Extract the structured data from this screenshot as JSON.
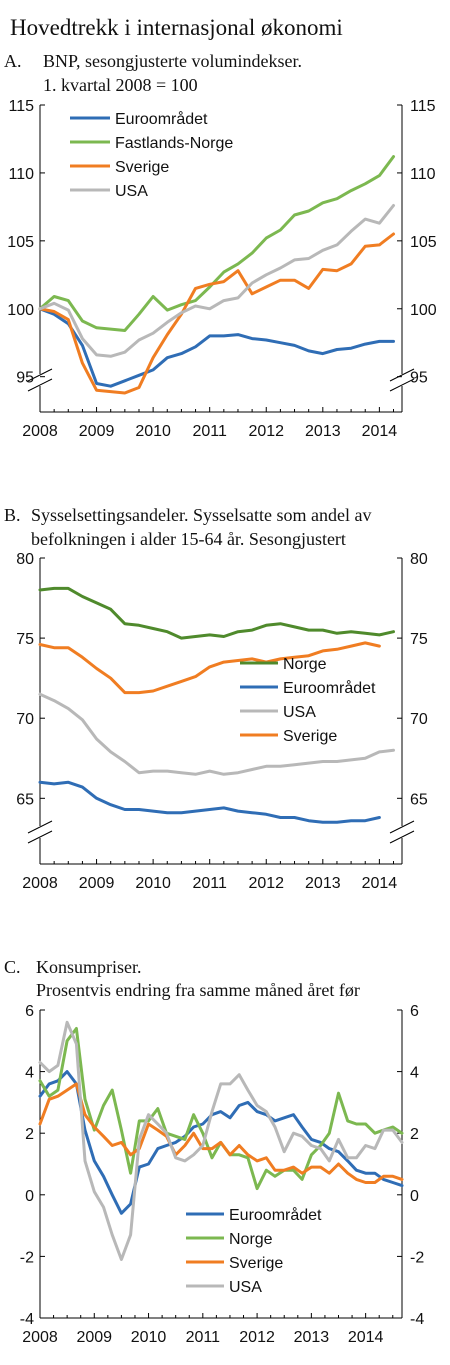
{
  "page_title": "Hovedtrekk i internasjonal økonomi",
  "chart_data": [
    {
      "id": "A",
      "type": "line",
      "panel_label": "A.",
      "title_lines": [
        "BNP, sesongjusterte volumindekser.",
        "1. kvartal 2008 = 100"
      ],
      "x_tick_labels": [
        "2008",
        "2009",
        "2010",
        "2011",
        "2012",
        "2013",
        "2014"
      ],
      "x_range": [
        2008,
        2014.4
      ],
      "y_range": [
        93.5,
        115
      ],
      "y_ticks": [
        95,
        100,
        105,
        110,
        115
      ],
      "axis_break": true,
      "grid": false,
      "legend_position": "top-left",
      "series": [
        {
          "name": "Euroområdet",
          "color": "#2f6db5",
          "x": [
            2008.0,
            2008.25,
            2008.5,
            2008.75,
            2009.0,
            2009.25,
            2009.5,
            2009.75,
            2010.0,
            2010.25,
            2010.5,
            2010.75,
            2011.0,
            2011.25,
            2011.5,
            2011.75,
            2012.0,
            2012.25,
            2012.5,
            2012.75,
            2013.0,
            2013.25,
            2013.5,
            2013.75,
            2014.0,
            2014.25
          ],
          "values": [
            100,
            99.6,
            98.9,
            97.3,
            94.5,
            94.3,
            94.7,
            95.1,
            95.5,
            96.4,
            96.7,
            97.2,
            98.0,
            98.0,
            98.1,
            97.8,
            97.7,
            97.5,
            97.3,
            96.9,
            96.7,
            97.0,
            97.1,
            97.4,
            97.6,
            97.6
          ]
        },
        {
          "name": "Fastlands-Norge",
          "color": "#7cb850",
          "x": [
            2008.0,
            2008.25,
            2008.5,
            2008.75,
            2009.0,
            2009.25,
            2009.5,
            2009.75,
            2010.0,
            2010.25,
            2010.5,
            2010.75,
            2011.0,
            2011.25,
            2011.5,
            2011.75,
            2012.0,
            2012.25,
            2012.5,
            2012.75,
            2013.0,
            2013.25,
            2013.5,
            2013.75,
            2014.0,
            2014.25
          ],
          "values": [
            100,
            100.9,
            100.6,
            99.1,
            98.6,
            98.5,
            98.4,
            99.6,
            100.9,
            99.9,
            100.3,
            100.6,
            101.6,
            102.7,
            103.3,
            104.1,
            105.2,
            105.8,
            106.9,
            107.2,
            107.8,
            108.1,
            108.7,
            109.2,
            109.8,
            111.2
          ]
        },
        {
          "name": "Sverige",
          "color": "#f07d22",
          "x": [
            2008.0,
            2008.25,
            2008.5,
            2008.75,
            2009.0,
            2009.25,
            2009.5,
            2009.75,
            2010.0,
            2010.25,
            2010.5,
            2010.75,
            2011.0,
            2011.25,
            2011.5,
            2011.75,
            2012.0,
            2012.25,
            2012.5,
            2012.75,
            2013.0,
            2013.25,
            2013.5,
            2013.75,
            2014.0,
            2014.25
          ],
          "values": [
            100,
            99.8,
            99.2,
            96.0,
            94.0,
            93.9,
            93.8,
            94.2,
            96.4,
            98.1,
            99.6,
            101.5,
            101.8,
            102.0,
            102.8,
            101.1,
            101.6,
            102.1,
            102.1,
            101.5,
            102.9,
            102.8,
            103.3,
            104.6,
            104.7,
            105.5
          ]
        },
        {
          "name": "USA",
          "color": "#b8b8b8",
          "x": [
            2008.0,
            2008.25,
            2008.5,
            2008.75,
            2009.0,
            2009.25,
            2009.5,
            2009.75,
            2010.0,
            2010.25,
            2010.5,
            2010.75,
            2011.0,
            2011.25,
            2011.5,
            2011.75,
            2012.0,
            2012.25,
            2012.5,
            2012.75,
            2013.0,
            2013.25,
            2013.5,
            2013.75,
            2014.0,
            2014.25
          ],
          "values": [
            100,
            100.4,
            99.9,
            97.8,
            96.6,
            96.5,
            96.8,
            97.7,
            98.2,
            99.0,
            99.7,
            100.2,
            100.0,
            100.6,
            100.8,
            101.9,
            102.5,
            103.0,
            103.6,
            103.7,
            104.3,
            104.7,
            105.7,
            106.6,
            106.3,
            107.6
          ]
        }
      ]
    },
    {
      "id": "B",
      "type": "line",
      "panel_label": "B.",
      "title_lines": [
        "Sysselsettingsandeler.  Sysselsatte som andel av",
        "befolkningen i alder 15-64 år. Sesongjustert"
      ],
      "x_tick_labels": [
        "2008",
        "2009",
        "2010",
        "2011",
        "2012",
        "2013",
        "2014"
      ],
      "x_range": [
        2008,
        2014.4
      ],
      "y_range": [
        62,
        80
      ],
      "y_ticks": [
        65,
        70,
        75,
        80
      ],
      "axis_break": true,
      "grid": false,
      "legend_position": "center-right",
      "series": [
        {
          "name": "Norge",
          "color": "#4f8a2c",
          "x": [
            2008.0,
            2008.25,
            2008.5,
            2008.75,
            2009.0,
            2009.25,
            2009.5,
            2009.75,
            2010.0,
            2010.25,
            2010.5,
            2010.75,
            2011.0,
            2011.25,
            2011.5,
            2011.75,
            2012.0,
            2012.25,
            2012.5,
            2012.75,
            2013.0,
            2013.25,
            2013.5,
            2013.75,
            2014.0,
            2014.25
          ],
          "values": [
            78.0,
            78.1,
            78.1,
            77.6,
            77.2,
            76.8,
            75.9,
            75.8,
            75.6,
            75.4,
            75.0,
            75.1,
            75.2,
            75.1,
            75.4,
            75.5,
            75.8,
            75.9,
            75.7,
            75.5,
            75.5,
            75.3,
            75.4,
            75.3,
            75.2,
            75.4
          ]
        },
        {
          "name": "Euroområdet",
          "color": "#2f6db5",
          "x": [
            2008.0,
            2008.25,
            2008.5,
            2008.75,
            2009.0,
            2009.25,
            2009.5,
            2009.75,
            2010.0,
            2010.25,
            2010.5,
            2010.75,
            2011.0,
            2011.25,
            2011.5,
            2011.75,
            2012.0,
            2012.25,
            2012.5,
            2012.75,
            2013.0,
            2013.25,
            2013.5,
            2013.75,
            2014.0
          ],
          "values": [
            66.0,
            65.9,
            66.0,
            65.7,
            65.0,
            64.6,
            64.3,
            64.3,
            64.2,
            64.1,
            64.1,
            64.2,
            64.3,
            64.4,
            64.2,
            64.1,
            64.0,
            63.8,
            63.8,
            63.6,
            63.5,
            63.5,
            63.6,
            63.6,
            63.8
          ]
        },
        {
          "name": "USA",
          "color": "#b8b8b8",
          "x": [
            2008.0,
            2008.25,
            2008.5,
            2008.75,
            2009.0,
            2009.25,
            2009.5,
            2009.75,
            2010.0,
            2010.25,
            2010.5,
            2010.75,
            2011.0,
            2011.25,
            2011.5,
            2011.75,
            2012.0,
            2012.25,
            2012.5,
            2012.75,
            2013.0,
            2013.25,
            2013.5,
            2013.75,
            2014.0,
            2014.25
          ],
          "values": [
            71.5,
            71.1,
            70.6,
            69.9,
            68.7,
            67.9,
            67.3,
            66.6,
            66.7,
            66.7,
            66.6,
            66.5,
            66.7,
            66.5,
            66.6,
            66.8,
            67.0,
            67.0,
            67.1,
            67.2,
            67.3,
            67.3,
            67.4,
            67.5,
            67.9,
            68.0
          ]
        },
        {
          "name": "Sverige",
          "color": "#f07d22",
          "x": [
            2008.0,
            2008.25,
            2008.5,
            2008.75,
            2009.0,
            2009.25,
            2009.5,
            2009.75,
            2010.0,
            2010.25,
            2010.5,
            2010.75,
            2011.0,
            2011.25,
            2011.5,
            2011.75,
            2012.0,
            2012.25,
            2012.5,
            2012.75,
            2013.0,
            2013.25,
            2013.5,
            2013.75,
            2014.0
          ],
          "values": [
            74.6,
            74.4,
            74.4,
            73.8,
            73.1,
            72.5,
            71.6,
            71.6,
            71.7,
            72.0,
            72.3,
            72.6,
            73.2,
            73.5,
            73.6,
            73.7,
            73.5,
            73.7,
            73.8,
            73.9,
            74.2,
            74.3,
            74.5,
            74.7,
            74.5
          ]
        }
      ]
    },
    {
      "id": "C",
      "type": "line",
      "panel_label": "C.",
      "title_lines": [
        "Konsumpriser.",
        "Prosentvis endring fra samme måned året før"
      ],
      "x_tick_labels": [
        "2008",
        "2009",
        "2010",
        "2011",
        "2012",
        "2013",
        "2014"
      ],
      "x_range": [
        2008,
        2014.67
      ],
      "y_range": [
        -4,
        6
      ],
      "y_ticks": [
        -4,
        -2,
        0,
        2,
        4,
        6
      ],
      "axis_break": false,
      "grid": false,
      "legend_position": "bottom-center",
      "series": [
        {
          "name": "Euroområdet",
          "color": "#2f6db5",
          "x": [
            2008.0,
            2008.17,
            2008.33,
            2008.5,
            2008.67,
            2008.83,
            2009.0,
            2009.17,
            2009.33,
            2009.5,
            2009.67,
            2009.83,
            2010.0,
            2010.17,
            2010.33,
            2010.5,
            2010.67,
            2010.83,
            2011.0,
            2011.17,
            2011.33,
            2011.5,
            2011.67,
            2011.83,
            2012.0,
            2012.17,
            2012.33,
            2012.5,
            2012.67,
            2012.83,
            2013.0,
            2013.17,
            2013.33,
            2013.5,
            2013.67,
            2013.83,
            2014.0,
            2014.17,
            2014.33,
            2014.5,
            2014.67
          ],
          "values": [
            3.2,
            3.6,
            3.7,
            4.0,
            3.6,
            2.1,
            1.1,
            0.6,
            0.0,
            -0.6,
            -0.3,
            0.9,
            1.0,
            1.5,
            1.6,
            1.7,
            1.9,
            2.2,
            2.3,
            2.6,
            2.7,
            2.5,
            2.9,
            3.0,
            2.7,
            2.6,
            2.4,
            2.5,
            2.6,
            2.2,
            1.8,
            1.7,
            1.5,
            1.4,
            1.1,
            0.8,
            0.7,
            0.7,
            0.5,
            0.4,
            0.3
          ]
        },
        {
          "name": "Norge",
          "color": "#7cb850",
          "x": [
            2008.0,
            2008.17,
            2008.33,
            2008.5,
            2008.67,
            2008.83,
            2009.0,
            2009.17,
            2009.33,
            2009.5,
            2009.67,
            2009.83,
            2010.0,
            2010.17,
            2010.33,
            2010.5,
            2010.67,
            2010.83,
            2011.0,
            2011.17,
            2011.33,
            2011.5,
            2011.67,
            2011.83,
            2012.0,
            2012.17,
            2012.33,
            2012.5,
            2012.67,
            2012.83,
            2013.0,
            2013.17,
            2013.33,
            2013.5,
            2013.67,
            2013.83,
            2014.0,
            2014.17,
            2014.33,
            2014.5,
            2014.67
          ],
          "values": [
            3.7,
            3.2,
            3.4,
            5.0,
            5.4,
            3.1,
            2.1,
            2.9,
            3.4,
            2.1,
            0.7,
            2.4,
            2.4,
            2.8,
            2.0,
            1.9,
            1.8,
            2.6,
            2.0,
            1.2,
            1.7,
            1.3,
            1.3,
            1.2,
            0.2,
            0.8,
            0.6,
            0.8,
            0.8,
            0.5,
            1.3,
            1.6,
            2.0,
            3.3,
            2.4,
            2.3,
            2.3,
            2.0,
            2.1,
            2.2,
            2.0
          ]
        },
        {
          "name": "Sverige",
          "color": "#f07d22",
          "x": [
            2008.0,
            2008.17,
            2008.33,
            2008.5,
            2008.67,
            2008.83,
            2009.0,
            2009.17,
            2009.33,
            2009.5,
            2009.67,
            2009.83,
            2010.0,
            2010.17,
            2010.33,
            2010.5,
            2010.67,
            2010.83,
            2011.0,
            2011.17,
            2011.33,
            2011.5,
            2011.67,
            2011.83,
            2012.0,
            2012.17,
            2012.33,
            2012.5,
            2012.67,
            2012.83,
            2013.0,
            2013.17,
            2013.33,
            2013.5,
            2013.67,
            2013.83,
            2014.0,
            2014.17,
            2014.33,
            2014.5,
            2014.67
          ],
          "values": [
            2.3,
            3.1,
            3.2,
            3.4,
            3.6,
            2.6,
            2.2,
            1.9,
            1.6,
            1.7,
            1.3,
            1.5,
            2.3,
            2.1,
            1.9,
            1.3,
            1.6,
            2.0,
            1.5,
            1.5,
            1.7,
            1.3,
            1.6,
            1.3,
            1.1,
            1.2,
            0.8,
            0.8,
            0.9,
            0.7,
            0.9,
            0.9,
            0.7,
            1.0,
            0.7,
            0.5,
            0.4,
            0.4,
            0.6,
            0.6,
            0.5
          ]
        },
        {
          "name": "USA",
          "color": "#b8b8b8",
          "x": [
            2008.0,
            2008.17,
            2008.33,
            2008.5,
            2008.67,
            2008.83,
            2009.0,
            2009.17,
            2009.33,
            2009.5,
            2009.67,
            2009.83,
            2010.0,
            2010.17,
            2010.33,
            2010.5,
            2010.67,
            2010.83,
            2011.0,
            2011.17,
            2011.33,
            2011.5,
            2011.67,
            2011.83,
            2012.0,
            2012.17,
            2012.33,
            2012.5,
            2012.67,
            2012.83,
            2013.0,
            2013.17,
            2013.33,
            2013.5,
            2013.67,
            2013.83,
            2014.0,
            2014.17,
            2014.33,
            2014.5,
            2014.67
          ],
          "values": [
            4.3,
            4.0,
            4.2,
            5.6,
            4.9,
            1.1,
            0.1,
            -0.4,
            -1.3,
            -2.1,
            -1.3,
            1.8,
            2.6,
            2.3,
            2.0,
            1.2,
            1.1,
            1.3,
            1.6,
            2.7,
            3.6,
            3.6,
            3.9,
            3.4,
            2.9,
            2.7,
            2.2,
            1.4,
            2.0,
            1.9,
            1.6,
            1.5,
            1.1,
            1.8,
            1.2,
            1.2,
            1.6,
            1.5,
            2.1,
            2.1,
            1.7
          ]
        }
      ]
    }
  ]
}
